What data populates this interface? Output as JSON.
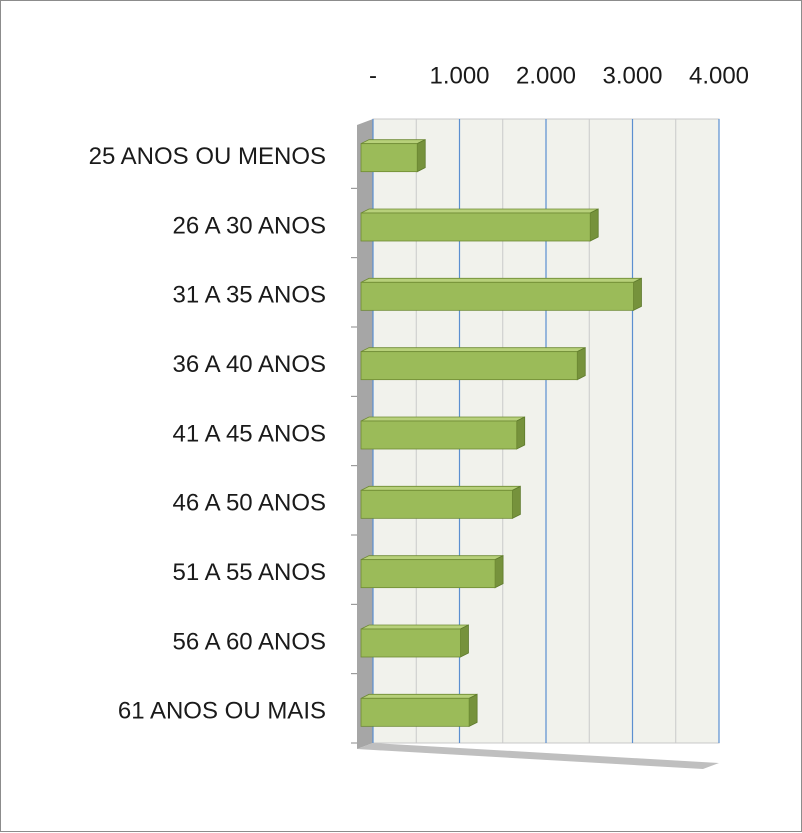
{
  "chart_data": {
    "type": "bar",
    "orientation": "horizontal",
    "categories": [
      "25 ANOS OU MENOS",
      "26 A 30 ANOS",
      "31 A 35 ANOS",
      "36 A 40 ANOS",
      "41 A 45 ANOS",
      "46 A 50 ANOS",
      "51 A 55 ANOS",
      "56 A 60 ANOS",
      "61 ANOS OU MAIS"
    ],
    "values": [
      650,
      2650,
      3150,
      2500,
      1800,
      1750,
      1550,
      1150,
      1250
    ],
    "color": "#9bbb59",
    "xlim": [
      0,
      4000
    ],
    "xticks": [
      {
        "value": 0,
        "label": "-"
      },
      {
        "value": 1000,
        "label": "1.000"
      },
      {
        "value": 2000,
        "label": "2.000"
      },
      {
        "value": 3000,
        "label": "3.000"
      },
      {
        "value": 4000,
        "label": "4.000"
      }
    ],
    "grid": true
  }
}
